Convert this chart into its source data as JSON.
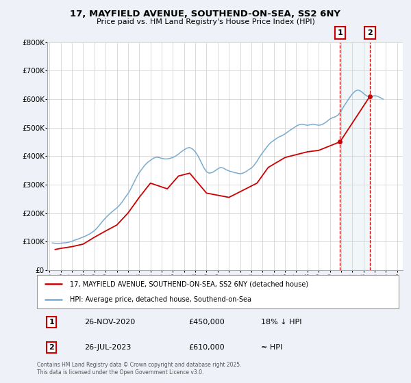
{
  "title": "17, MAYFIELD AVENUE, SOUTHEND-ON-SEA, SS2 6NY",
  "subtitle": "Price paid vs. HM Land Registry's House Price Index (HPI)",
  "background_color": "#eef2f8",
  "plot_background": "#ffffff",
  "red_color": "#cc0000",
  "blue_color": "#7aabcc",
  "ylim": [
    0,
    800000
  ],
  "xlim_start": 1994.8,
  "xlim_end": 2026.5,
  "yticks": [
    0,
    100000,
    200000,
    300000,
    400000,
    500000,
    600000,
    700000,
    800000
  ],
  "ytick_labels": [
    "£0",
    "£100K",
    "£200K",
    "£300K",
    "£400K",
    "£500K",
    "£600K",
    "£700K",
    "£800K"
  ],
  "sale1_x": 2020.9,
  "sale1_y": 450000,
  "sale1_label": "1",
  "sale1_date": "26-NOV-2020",
  "sale1_price": "£450,000",
  "sale1_hpi": "18% ↓ HPI",
  "sale2_x": 2023.57,
  "sale2_y": 610000,
  "sale2_label": "2",
  "sale2_date": "26-JUL-2023",
  "sale2_price": "£610,000",
  "sale2_hpi": "≈ HPI",
  "legend_red": "17, MAYFIELD AVENUE, SOUTHEND-ON-SEA, SS2 6NY (detached house)",
  "legend_blue": "HPI: Average price, detached house, Southend-on-Sea",
  "footer": "Contains HM Land Registry data © Crown copyright and database right 2025.\nThis data is licensed under the Open Government Licence v3.0.",
  "hpi_data_x": [
    1995.25,
    1995.5,
    1995.75,
    1996.0,
    1996.25,
    1996.5,
    1996.75,
    1997.0,
    1997.25,
    1997.5,
    1997.75,
    1998.0,
    1998.25,
    1998.5,
    1998.75,
    1999.0,
    1999.25,
    1999.5,
    1999.75,
    2000.0,
    2000.25,
    2000.5,
    2000.75,
    2001.0,
    2001.25,
    2001.5,
    2001.75,
    2002.0,
    2002.25,
    2002.5,
    2002.75,
    2003.0,
    2003.25,
    2003.5,
    2003.75,
    2004.0,
    2004.25,
    2004.5,
    2004.75,
    2005.0,
    2005.25,
    2005.5,
    2005.75,
    2006.0,
    2006.25,
    2006.5,
    2006.75,
    2007.0,
    2007.25,
    2007.5,
    2007.75,
    2008.0,
    2008.25,
    2008.5,
    2008.75,
    2009.0,
    2009.25,
    2009.5,
    2009.75,
    2010.0,
    2010.25,
    2010.5,
    2010.75,
    2011.0,
    2011.25,
    2011.5,
    2011.75,
    2012.0,
    2012.25,
    2012.5,
    2012.75,
    2013.0,
    2013.25,
    2013.5,
    2013.75,
    2014.0,
    2014.25,
    2014.5,
    2014.75,
    2015.0,
    2015.25,
    2015.5,
    2015.75,
    2016.0,
    2016.25,
    2016.5,
    2016.75,
    2017.0,
    2017.25,
    2017.5,
    2017.75,
    2018.0,
    2018.25,
    2018.5,
    2018.75,
    2019.0,
    2019.25,
    2019.5,
    2019.75,
    2020.0,
    2020.25,
    2020.5,
    2020.75,
    2021.0,
    2021.25,
    2021.5,
    2021.75,
    2022.0,
    2022.25,
    2022.5,
    2022.75,
    2023.0,
    2023.25,
    2023.5,
    2023.75,
    2024.0,
    2024.25,
    2024.5,
    2024.75
  ],
  "hpi_data_y": [
    95000,
    94000,
    93500,
    94000,
    95000,
    96000,
    98000,
    101000,
    105000,
    108000,
    112000,
    116000,
    120000,
    125000,
    131000,
    138000,
    148000,
    160000,
    172000,
    183000,
    193000,
    202000,
    210000,
    218000,
    228000,
    240000,
    255000,
    268000,
    285000,
    305000,
    325000,
    342000,
    355000,
    368000,
    378000,
    385000,
    392000,
    396000,
    395000,
    392000,
    390000,
    390000,
    392000,
    395000,
    400000,
    407000,
    415000,
    422000,
    428000,
    430000,
    425000,
    415000,
    400000,
    380000,
    360000,
    345000,
    340000,
    342000,
    348000,
    355000,
    360000,
    358000,
    352000,
    348000,
    345000,
    342000,
    340000,
    338000,
    340000,
    345000,
    352000,
    358000,
    368000,
    382000,
    398000,
    412000,
    425000,
    438000,
    448000,
    455000,
    462000,
    468000,
    472000,
    478000,
    485000,
    492000,
    498000,
    505000,
    510000,
    512000,
    510000,
    508000,
    510000,
    512000,
    510000,
    508000,
    510000,
    515000,
    522000,
    530000,
    535000,
    538000,
    545000,
    558000,
    575000,
    590000,
    605000,
    618000,
    628000,
    632000,
    628000,
    620000,
    612000,
    608000,
    610000,
    612000,
    610000,
    605000,
    600000
  ],
  "price_data_x": [
    1995.5,
    1996.0,
    1997.0,
    1998.0,
    1999.0,
    2000.0,
    2001.0,
    2002.0,
    2003.0,
    2004.0,
    2005.5,
    2006.5,
    2007.5,
    2009.0,
    2011.0,
    2013.5,
    2014.5,
    2016.0,
    2017.0,
    2018.0,
    2019.0,
    2020.9,
    2023.57
  ],
  "price_data_y": [
    72000,
    76000,
    82000,
    91000,
    115000,
    137000,
    158000,
    200000,
    255000,
    305000,
    285000,
    330000,
    340000,
    270000,
    255000,
    305000,
    360000,
    395000,
    405000,
    415000,
    420000,
    450000,
    610000
  ]
}
